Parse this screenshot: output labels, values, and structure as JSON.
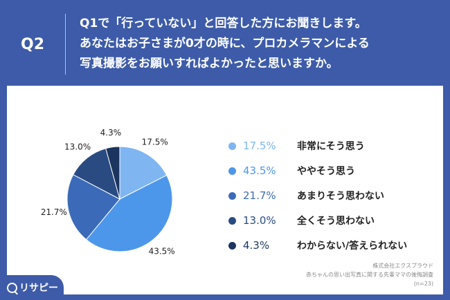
{
  "header": {
    "q_label": "Q2",
    "question_lines": [
      "Q1で「行っていない」と回答した方にお聞きします。",
      "あなたはお子さまが0才の時に、プロカメラマンによる",
      "写真撮影をお願いすればよかったと思いますか。"
    ]
  },
  "chart_data": {
    "type": "pie",
    "categories": [
      "非常にそう思う",
      "ややそう思う",
      "あまりそう思わない",
      "全くそう思わない",
      "わからない/答えられない"
    ],
    "values": [
      17.5,
      43.5,
      21.7,
      13.0,
      4.3
    ],
    "labels": [
      "17.5%",
      "43.5%",
      "21.7%",
      "13.0%",
      "4.3%"
    ],
    "colors": [
      "#7fb6f2",
      "#4d97ea",
      "#3b6bb8",
      "#2a4b82",
      "#1c355e"
    ],
    "legend_placement": "right",
    "start_angle_deg": 0,
    "direction": "clockwise"
  },
  "legend": {
    "items": [
      {
        "pct": "17.5%",
        "label": "非常にそう思う",
        "color": "#7fb6f2"
      },
      {
        "pct": "43.5%",
        "label": "ややそう思う",
        "color": "#4d97ea"
      },
      {
        "pct": "21.7%",
        "label": "あまりそう思わない",
        "color": "#3b6bb8"
      },
      {
        "pct": "13.0%",
        "label": "全くそう思わない",
        "color": "#2a4b82"
      },
      {
        "pct": "4.3%",
        "label": "わからない/答えられない",
        "color": "#1c355e"
      }
    ]
  },
  "credit": {
    "line1": "株式会社エクスプラウド",
    "line2": "赤ちゃんの思い出写真に関する先輩ママの後悔調査",
    "line3": "(n=23)"
  },
  "logo": {
    "text": "リサピー"
  }
}
